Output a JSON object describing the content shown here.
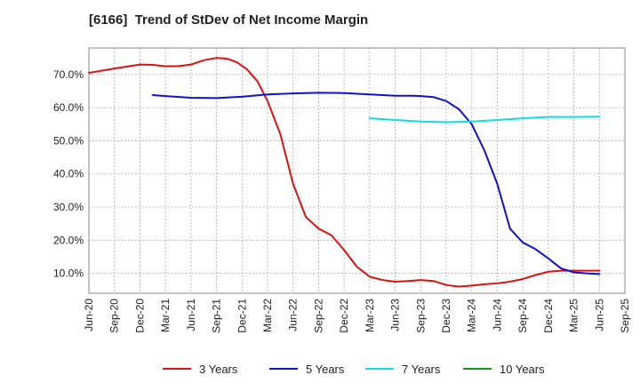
{
  "chart_data": {
    "type": "line",
    "title": "[6166]  Trend of StDev of Net Income Margin",
    "xlabel": "",
    "ylabel": "",
    "ylim": [
      4,
      78
    ],
    "yticks": [
      10,
      20,
      30,
      40,
      50,
      60,
      70
    ],
    "ytick_labels": [
      "10.0%",
      "20.0%",
      "30.0%",
      "40.0%",
      "50.0%",
      "60.0%",
      "70.0%"
    ],
    "xtick_labels": [
      "Jun-20",
      "Sep-20",
      "Dec-20",
      "Mar-21",
      "Jun-21",
      "Sep-21",
      "Dec-21",
      "Mar-22",
      "Jun-22",
      "Sep-22",
      "Dec-22",
      "Mar-23",
      "Jun-23",
      "Sep-23",
      "Dec-23",
      "Mar-24",
      "Jun-24",
      "Sep-24",
      "Dec-24",
      "Mar-25",
      "Jun-25",
      "Sep-25"
    ],
    "grid": true,
    "legend_position": "bottom",
    "series": [
      {
        "name": "3 Years",
        "color": "#dd1111",
        "points": [
          [
            0,
            70.5
          ],
          [
            1,
            71.8
          ],
          [
            2,
            73.0
          ],
          [
            2.5,
            72.9
          ],
          [
            3,
            72.5
          ],
          [
            3.5,
            72.5
          ],
          [
            4,
            73.0
          ],
          [
            4.5,
            74.3
          ],
          [
            5,
            75.0
          ],
          [
            5.4,
            74.8
          ],
          [
            5.8,
            73.7
          ],
          [
            6.2,
            71.5
          ],
          [
            6.6,
            68.0
          ],
          [
            7,
            62.0
          ],
          [
            7.5,
            52.0
          ],
          [
            8,
            37.0
          ],
          [
            8.5,
            27.0
          ],
          [
            9,
            23.5
          ],
          [
            9.5,
            21.5
          ],
          [
            10,
            17.0
          ],
          [
            10.5,
            12.0
          ],
          [
            11,
            9.0
          ],
          [
            11.5,
            8.0
          ],
          [
            12,
            7.5
          ],
          [
            12.5,
            7.7
          ],
          [
            13,
            8.0
          ],
          [
            13.5,
            7.7
          ],
          [
            14,
            6.5
          ],
          [
            14.5,
            6.0
          ],
          [
            15,
            6.3
          ],
          [
            15.5,
            6.7
          ],
          [
            16,
            7.0
          ],
          [
            16.5,
            7.5
          ],
          [
            17,
            8.3
          ],
          [
            17.5,
            9.5
          ],
          [
            18,
            10.5
          ],
          [
            18.5,
            10.8
          ],
          [
            19,
            10.8
          ],
          [
            19.5,
            10.8
          ],
          [
            20,
            10.8
          ]
        ]
      },
      {
        "name": "5 Years",
        "color": "#1111cc",
        "points": [
          [
            2.5,
            63.8
          ],
          [
            3,
            63.5
          ],
          [
            4,
            63.0
          ],
          [
            5,
            62.9
          ],
          [
            6,
            63.3
          ],
          [
            7,
            64.0
          ],
          [
            8,
            64.3
          ],
          [
            9,
            64.5
          ],
          [
            10,
            64.4
          ],
          [
            11,
            64.0
          ],
          [
            12,
            63.6
          ],
          [
            12.7,
            63.6
          ],
          [
            13,
            63.5
          ],
          [
            13.5,
            63.2
          ],
          [
            14,
            62.0
          ],
          [
            14.5,
            59.5
          ],
          [
            15,
            55.0
          ],
          [
            15.5,
            47.0
          ],
          [
            16,
            37.0
          ],
          [
            16.5,
            23.5
          ],
          [
            17,
            19.3
          ],
          [
            17.5,
            17.3
          ],
          [
            18,
            14.5
          ],
          [
            18.5,
            11.5
          ],
          [
            19,
            10.3
          ],
          [
            19.5,
            10.0
          ],
          [
            20,
            9.8
          ]
        ]
      },
      {
        "name": "7 Years",
        "color": "#11dddd",
        "points": [
          [
            11,
            56.8
          ],
          [
            12,
            56.3
          ],
          [
            13,
            55.8
          ],
          [
            14,
            55.6
          ],
          [
            15,
            55.8
          ],
          [
            16,
            56.3
          ],
          [
            17,
            56.8
          ],
          [
            18,
            57.2
          ],
          [
            19,
            57.2
          ],
          [
            20,
            57.3
          ]
        ]
      },
      {
        "name": "10 Years",
        "color": "#119911",
        "points": []
      }
    ]
  }
}
